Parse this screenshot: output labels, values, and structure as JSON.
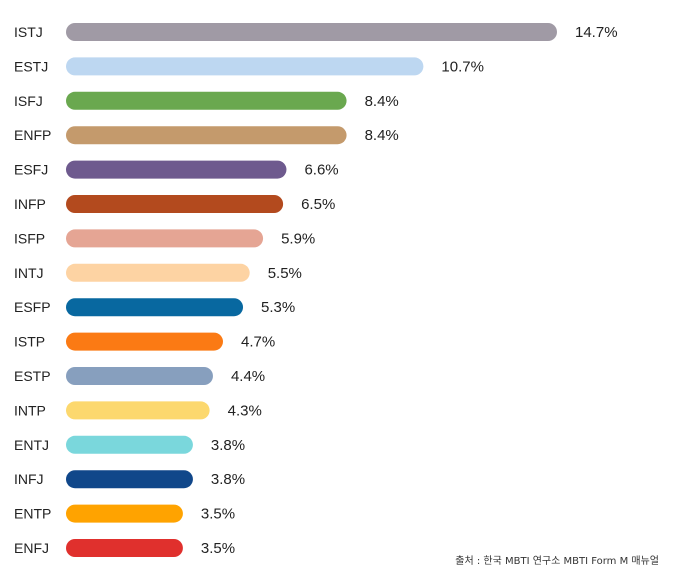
{
  "chart_data": {
    "type": "bar",
    "orientation": "horizontal",
    "categories": [
      "ISTJ",
      "ESTJ",
      "ISFJ",
      "ENFP",
      "ESFJ",
      "INFP",
      "ISFP",
      "INTJ",
      "ESFP",
      "ISTP",
      "ESTP",
      "INTP",
      "ENTJ",
      "INFJ",
      "ENTP",
      "ENFJ"
    ],
    "values": [
      14.7,
      10.7,
      8.4,
      8.4,
      6.6,
      6.5,
      5.9,
      5.5,
      5.3,
      4.7,
      4.4,
      4.3,
      3.8,
      3.8,
      3.5,
      3.5
    ],
    "value_labels": [
      "14.7%",
      "10.7%",
      "8.4%",
      "8.4%",
      "6.6%",
      "6.5%",
      "5.9%",
      "5.5%",
      "5.3%",
      "4.7%",
      "4.4%",
      "4.3%",
      "3.8%",
      "3.8%",
      "3.5%",
      "3.5%"
    ],
    "colors": [
      "#a09aa5",
      "#bdd7f1",
      "#6aa84f",
      "#c49a6c",
      "#6e5a8e",
      "#b34a1e",
      "#e5a594",
      "#fdd3a3",
      "#0868a0",
      "#fb7a14",
      "#879fbe",
      "#fcd86e",
      "#7ad7dc",
      "#10478a",
      "#ffa300",
      "#e0302d"
    ],
    "title": "",
    "xlabel": "",
    "ylabel": "",
    "xlim": [
      0,
      14.7
    ],
    "grid": false,
    "legend": "none"
  },
  "source": "출처 : 한국 MBTI 연구소 MBTI Form M 매뉴얼"
}
